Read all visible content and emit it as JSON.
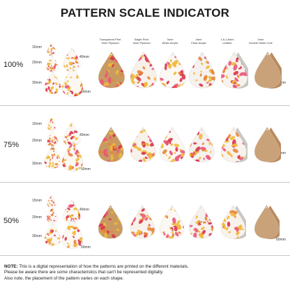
{
  "title": "PATTERN SCALE INDICATOR",
  "materials": [
    {
      "label": "Transparent Print 3mm Plywood",
      "line1": "Transparent Print",
      "line2": "3mm Plywood",
      "base": "#c89a62",
      "flowers": true
    },
    {
      "label": "Bright Print 3mm Plywood",
      "line1": "Bright Print",
      "line2": "3mm Plywood",
      "base": "#f7f1ea",
      "flowers": true
    },
    {
      "label": "3mm White Acrylic",
      "line1": "3mm",
      "line2": "White Acrylic",
      "base": "#fbf7f3",
      "flowers": true
    },
    {
      "label": "3mm Clear Acrylic",
      "line1": "3mm",
      "line2": "Clear Acrylic",
      "base": "#f5f1ee",
      "flowers": true
    },
    {
      "label": "1.6-1.8mm Leather",
      "line1": "1.6-1.8mm",
      "line2": "Leather",
      "base": "#f8f2ec",
      "flowers": true
    },
    {
      "label": "2mm Double Sided Cork",
      "line1": "2mm",
      "line2": "Double Sided Cork",
      "base": "#caa27a",
      "flowers": false
    }
  ],
  "sizes": [
    "15mm",
    "20mm",
    "30mm",
    "40mm",
    "50mm",
    "60mm"
  ],
  "scales": [
    {
      "label": "100%",
      "scale": 1.0
    },
    {
      "label": "75%",
      "scale": 0.75
    },
    {
      "label": "50%",
      "scale": 0.5
    }
  ],
  "note": {
    "prefix": "NOTE:",
    "line1": "This is a digital representation of how the patterns are printed on the different materials.",
    "line2": "Please be aware there are some characteristics that can't be represented digitally.",
    "line3": "Also note, the placement of the pattern varies on each shape."
  },
  "colors": {
    "pattern_yellow": "#f0b93a",
    "pattern_orange": "#e8843a",
    "pattern_pink": "#e9557a",
    "pattern_red": "#d9344e",
    "leather_grey": "#c7c8c2"
  }
}
